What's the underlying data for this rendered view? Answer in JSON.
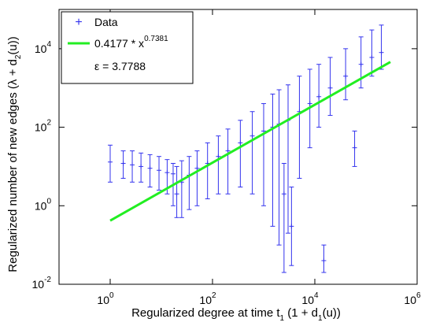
{
  "chart_data": {
    "type": "scatter",
    "xlabel": {
      "main": "Regularized degree at time t",
      "sub1": "1",
      "mid": " (1 + d",
      "sub2": "1",
      "end": "(u))"
    },
    "ylabel": {
      "main": "Regularized number of new edges (λ + d",
      "sub": "2",
      "end": "(u))"
    },
    "x_scale": "log",
    "y_scale": "log",
    "xlim": [
      0.1,
      1000000
    ],
    "ylim": [
      0.01,
      100000
    ],
    "x_ticks": [
      {
        "value": 1,
        "base": "10",
        "exp": "0"
      },
      {
        "value": 100,
        "base": "10",
        "exp": "2"
      },
      {
        "value": 10000,
        "base": "10",
        "exp": "4"
      },
      {
        "value": 1000000,
        "base": "10",
        "exp": "6"
      }
    ],
    "y_ticks": [
      {
        "value": 0.01,
        "base": "10",
        "exp": "-2"
      },
      {
        "value": 1,
        "base": "10",
        "exp": "0"
      },
      {
        "value": 100,
        "base": "10",
        "exp": "2"
      },
      {
        "value": 10000,
        "base": "10",
        "exp": "4"
      }
    ],
    "grid": false,
    "legend": {
      "position": "top-left",
      "data_label": "Data",
      "fit_label_base": "0.4177 * x",
      "fit_label_exp": "0.7381",
      "epsilon_label": "ε = 3.7788"
    },
    "series": [
      {
        "name": "Data",
        "kind": "scatter-with-errorbars",
        "color": "#3333ee",
        "marker": "plus",
        "samples": [
          {
            "x": 1,
            "y": 13,
            "err": [
              4,
              35
            ]
          },
          {
            "x": 1.8,
            "y": 12,
            "err": [
              5,
              25
            ]
          },
          {
            "x": 2.7,
            "y": 11,
            "err": [
              4,
              25
            ]
          },
          {
            "x": 4,
            "y": 10,
            "err": [
              4,
              22
            ]
          },
          {
            "x": 6,
            "y": 9,
            "err": [
              3,
              20
            ]
          },
          {
            "x": 9,
            "y": 8,
            "err": [
              2.5,
              18
            ]
          },
          {
            "x": 13,
            "y": 7,
            "err": [
              2,
              15
            ]
          },
          {
            "x": 17,
            "y": 6.5,
            "err": [
              1,
              12
            ]
          },
          {
            "x": 20,
            "y": 2,
            "err": [
              0.5,
              10
            ]
          },
          {
            "x": 25,
            "y": 4,
            "err": [
              0.5,
              14
            ]
          },
          {
            "x": 35,
            "y": 6,
            "err": [
              0.8,
              18
            ]
          },
          {
            "x": 50,
            "y": 9,
            "err": [
              1,
              25
            ]
          },
          {
            "x": 80,
            "y": 12,
            "err": [
              1.5,
              40
            ]
          },
          {
            "x": 130,
            "y": 18,
            "err": [
              2,
              60
            ]
          },
          {
            "x": 200,
            "y": 25,
            "err": [
              2,
              90
            ]
          },
          {
            "x": 350,
            "y": 40,
            "err": [
              3,
              150
            ]
          },
          {
            "x": 600,
            "y": 60,
            "err": [
              2,
              250
            ]
          },
          {
            "x": 1000,
            "y": 80,
            "err": [
              1,
              400
            ]
          },
          {
            "x": 1500,
            "y": 100,
            "err": [
              0.3,
              700
            ]
          },
          {
            "x": 2000,
            "y": 120,
            "err": [
              0.1,
              900
            ]
          },
          {
            "x": 2500,
            "y": 2,
            "err": [
              0.02,
              12
            ]
          },
          {
            "x": 3000,
            "y": 150,
            "err": [
              0.2,
              1200
            ]
          },
          {
            "x": 3500,
            "y": 0.3,
            "err": [
              0.03,
              3
            ]
          },
          {
            "x": 5000,
            "y": 250,
            "err": [
              5,
              2000
            ]
          },
          {
            "x": 8000,
            "y": 400,
            "err": [
              30,
              3000
            ]
          },
          {
            "x": 12000,
            "y": 600,
            "err": [
              100,
              4000
            ]
          },
          {
            "x": 15000,
            "y": 0.04,
            "err": [
              0.02,
              0.1
            ]
          },
          {
            "x": 20000,
            "y": 1000,
            "err": [
              200,
              6000
            ]
          },
          {
            "x": 40000,
            "y": 2000,
            "err": [
              500,
              10000
            ]
          },
          {
            "x": 60000,
            "y": 30,
            "err": [
              10,
              80
            ]
          },
          {
            "x": 80000,
            "y": 4000,
            "err": [
              1000,
              20000
            ]
          },
          {
            "x": 130000,
            "y": 6000,
            "err": [
              2000,
              30000
            ]
          },
          {
            "x": 200000,
            "y": 8000,
            "err": [
              3000,
              40000
            ]
          }
        ]
      },
      {
        "name": "0.4177 * x^0.7381",
        "kind": "fit-line",
        "color": "#22ee22",
        "a": 0.4177,
        "b": 0.7381,
        "x_range": [
          1,
          300000
        ]
      }
    ]
  }
}
